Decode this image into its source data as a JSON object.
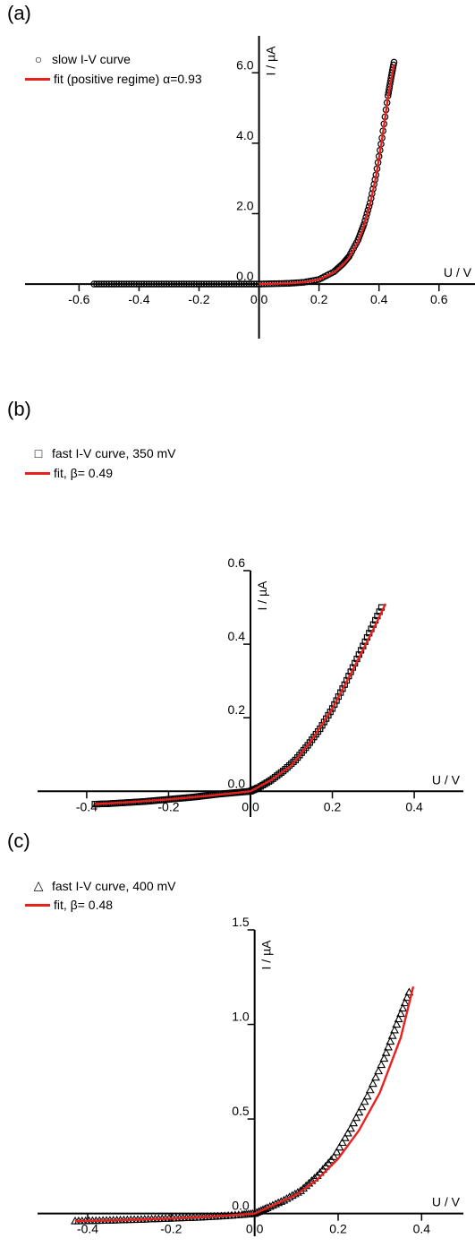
{
  "colors": {
    "fit": "#e8211f",
    "axis": "#000000",
    "markers": "#000000"
  },
  "chart_data": [
    {
      "id": "a",
      "panel_label": "(a)",
      "type": "scatter",
      "xlabel": "U / V",
      "ylabel": "I / µA",
      "xlim": [
        -0.78,
        0.72
      ],
      "ylim": [
        -1.55,
        7.05
      ],
      "xticks": [
        -0.6,
        -0.4,
        -0.2,
        0.0,
        0.2,
        0.4,
        0.6
      ],
      "xtick_labels": [
        "-0.6",
        "-0.4",
        "-0.2",
        "0.0",
        "0.2",
        "0.4",
        "0.6"
      ],
      "yticks": [
        0.0,
        2.0,
        4.0,
        6.0
      ],
      "ytick_labels": [
        "0.0",
        "2.0",
        "4.0",
        "6.0"
      ],
      "marker": "circle",
      "legend": {
        "placement": "top-left",
        "marker_label": "slow I-V curve",
        "fit_label": "fit (positive regime) α=0.93"
      },
      "series": [
        {
          "name": "slow I-V curve",
          "x": [
            -0.55,
            -0.5,
            -0.45,
            -0.4,
            -0.35,
            -0.3,
            -0.25,
            -0.2,
            -0.15,
            -0.1,
            -0.05,
            0.0,
            0.05,
            0.1,
            0.15,
            0.2,
            0.25,
            0.28,
            0.3,
            0.33,
            0.35,
            0.37,
            0.39,
            0.41,
            0.43,
            0.44,
            0.45
          ],
          "y": [
            0.0,
            0.0,
            0.0,
            0.0,
            0.0,
            0.0,
            0.0,
            0.0,
            0.0,
            0.0,
            0.0,
            0.0,
            0.01,
            0.02,
            0.05,
            0.13,
            0.35,
            0.58,
            0.78,
            1.25,
            1.7,
            2.3,
            3.1,
            4.15,
            5.35,
            5.85,
            6.3
          ]
        },
        {
          "name": "fit (positive regime) α=0.93",
          "x": [
            0.0,
            0.05,
            0.1,
            0.15,
            0.2,
            0.25,
            0.28,
            0.3,
            0.33,
            0.35,
            0.37,
            0.39,
            0.41,
            0.43,
            0.45
          ],
          "y": [
            0.0,
            0.01,
            0.02,
            0.05,
            0.13,
            0.33,
            0.55,
            0.75,
            1.2,
            1.65,
            2.25,
            3.05,
            4.1,
            5.3,
            6.25
          ]
        }
      ]
    },
    {
      "id": "b",
      "panel_label": "(b)",
      "type": "scatter",
      "xlabel": "U / V",
      "ylabel": "I / µA",
      "xlim": [
        -0.52,
        0.52
      ],
      "ylim": [
        -0.07,
        0.6
      ],
      "xticks": [
        -0.4,
        -0.2,
        0.0,
        0.2,
        0.4
      ],
      "xtick_labels": [
        "-0.4",
        "-0.2",
        "0.0",
        "0.2",
        "0.4"
      ],
      "yticks": [
        0.0,
        0.2,
        0.4,
        0.6
      ],
      "ytick_labels": [
        "0.0",
        "0.2",
        "0.4",
        "0.6"
      ],
      "marker": "square",
      "legend": {
        "placement": "top-left",
        "marker_label": "fast I-V curve, 350 mV",
        "fit_label": "fit, β= 0.49"
      },
      "series": [
        {
          "name": "fast I-V curve, 350 mV",
          "x": [
            -0.38,
            -0.35,
            -0.32,
            -0.29,
            -0.26,
            -0.23,
            -0.2,
            -0.17,
            -0.14,
            -0.11,
            -0.08,
            -0.05,
            -0.02,
            0.0,
            0.02,
            0.05,
            0.08,
            0.11,
            0.14,
            0.17,
            0.2,
            0.23,
            0.26,
            0.29,
            0.32
          ],
          "y": [
            -0.035,
            -0.034,
            -0.032,
            -0.03,
            -0.028,
            -0.025,
            -0.022,
            -0.019,
            -0.016,
            -0.012,
            -0.008,
            -0.005,
            -0.002,
            0.0,
            0.01,
            0.03,
            0.055,
            0.085,
            0.125,
            0.17,
            0.225,
            0.29,
            0.36,
            0.43,
            0.5
          ]
        },
        {
          "name": "fit, β= 0.49",
          "x": [
            -0.38,
            -0.3,
            -0.2,
            -0.1,
            0.0,
            0.05,
            0.1,
            0.15,
            0.2,
            0.25,
            0.3,
            0.33
          ],
          "y": [
            -0.035,
            -0.03,
            -0.022,
            -0.012,
            0.0,
            0.03,
            0.07,
            0.14,
            0.225,
            0.33,
            0.44,
            0.51
          ]
        }
      ]
    },
    {
      "id": "c",
      "panel_label": "(c)",
      "type": "scatter",
      "xlabel": "U / V",
      "ylabel": "I / µA",
      "xlim": [
        -0.52,
        0.5
      ],
      "ylim": [
        -0.12,
        1.5
      ],
      "xticks": [
        -0.4,
        -0.2,
        0.0,
        0.2,
        0.4
      ],
      "xtick_labels": [
        "-0.4",
        "-0.2",
        "0.0",
        "0.2",
        "0.4"
      ],
      "yticks": [
        0.0,
        0.5,
        1.0,
        1.5
      ],
      "ytick_labels": [
        "0.0",
        "0.5",
        "1.0",
        "1.5"
      ],
      "marker": "triangle",
      "legend": {
        "placement": "top-left",
        "marker_label": "fast I-V curve, 400 mV",
        "fit_label": "fit, β= 0.48"
      },
      "series": [
        {
          "name": "fast I-V curve, 400 mV",
          "x": [
            -0.43,
            -0.38,
            -0.33,
            -0.28,
            -0.23,
            -0.18,
            -0.13,
            -0.08,
            -0.03,
            0.0,
            0.03,
            0.07,
            0.11,
            0.15,
            0.19,
            0.23,
            0.27,
            0.31,
            0.34,
            0.37
          ],
          "y": [
            -0.04,
            -0.038,
            -0.035,
            -0.032,
            -0.028,
            -0.024,
            -0.02,
            -0.014,
            -0.006,
            0.0,
            0.03,
            0.07,
            0.12,
            0.2,
            0.3,
            0.45,
            0.62,
            0.82,
            1.0,
            1.17
          ]
        },
        {
          "name": "fit, β= 0.48",
          "x": [
            -0.43,
            -0.3,
            -0.2,
            -0.1,
            0.0,
            0.05,
            0.1,
            0.15,
            0.2,
            0.25,
            0.3,
            0.35,
            0.38
          ],
          "y": [
            -0.04,
            -0.033,
            -0.026,
            -0.015,
            0.0,
            0.05,
            0.1,
            0.18,
            0.29,
            0.44,
            0.64,
            0.93,
            1.2
          ]
        }
      ]
    }
  ]
}
